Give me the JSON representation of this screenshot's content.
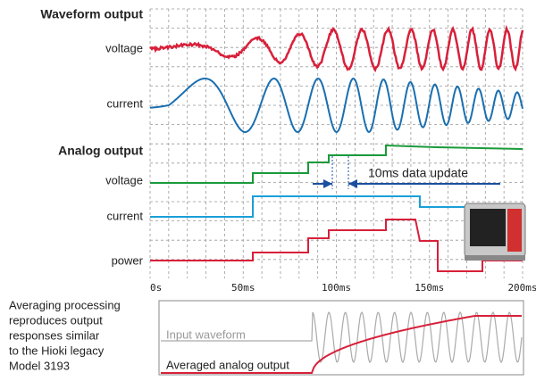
{
  "waveform_output": {
    "title": "Waveform output",
    "labels": [
      "voltage",
      "current"
    ]
  },
  "analog_output": {
    "title": "Analog output",
    "labels": [
      "voltage",
      "current",
      "power"
    ],
    "annotation": "10ms data update"
  },
  "x_axis": {
    "ticks": [
      "0s",
      "50ms",
      "100ms",
      "150ms",
      "200ms"
    ]
  },
  "inset": {
    "caption_lines": [
      "Averaging processing",
      "reproduces output",
      "responses similar",
      "to the Hioki legacy",
      "Model 3193"
    ],
    "labels": [
      "Input waveform",
      "Averaged analog output"
    ]
  }
}
